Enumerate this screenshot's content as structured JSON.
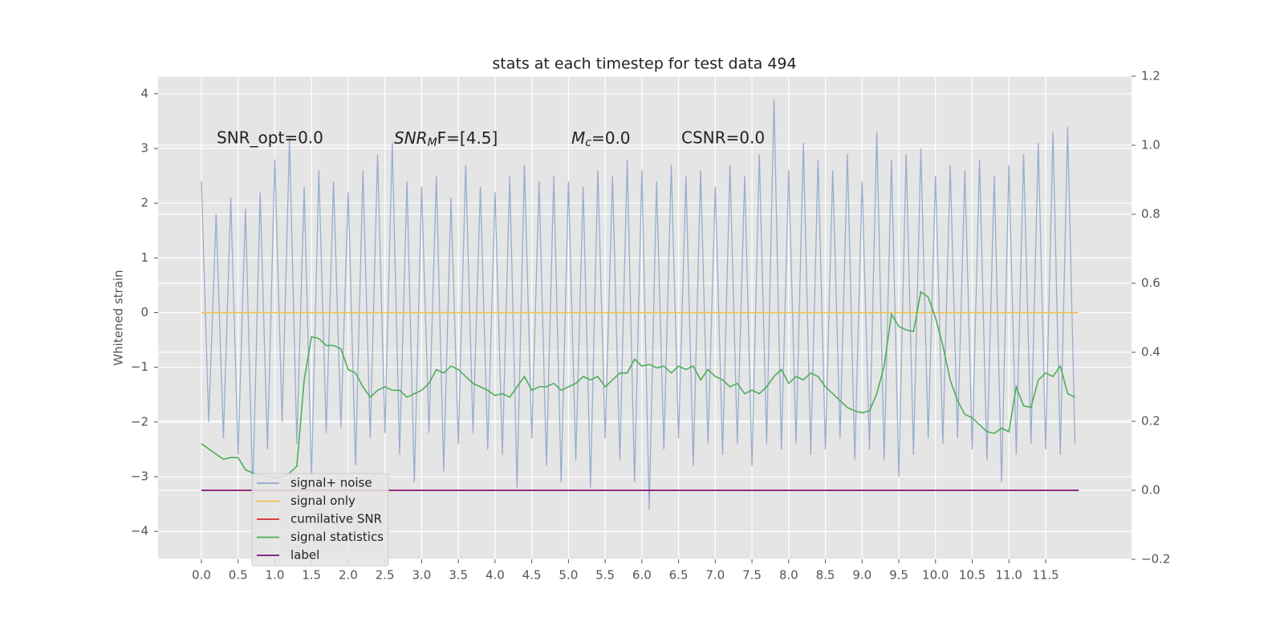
{
  "chart_data": {
    "type": "line",
    "title": "stats at each timestep for test data 494",
    "y_label": "Whitened strain",
    "annotations": [
      {
        "text": "SNR_opt=0.0"
      },
      {
        "base": "SNR",
        "sub": "M",
        "tail": "F=[4.5]"
      },
      {
        "base": "M",
        "sub": "c",
        "tail": "=0.0"
      },
      {
        "text": "CSNR=0.0"
      }
    ],
    "x": [
      0.0,
      0.1,
      0.2,
      0.3,
      0.4,
      0.5,
      0.6,
      0.7,
      0.8,
      0.9,
      1.0,
      1.1,
      1.2,
      1.3,
      1.4,
      1.5,
      1.6,
      1.7,
      1.8,
      1.9,
      2.0,
      2.1,
      2.2,
      2.3,
      2.4,
      2.5,
      2.6,
      2.7,
      2.8,
      2.9,
      3.0,
      3.1,
      3.2,
      3.3,
      3.4,
      3.5,
      3.6,
      3.7,
      3.8,
      3.9,
      4.0,
      4.1,
      4.2,
      4.3,
      4.4,
      4.5,
      4.6,
      4.7,
      4.8,
      4.9,
      5.0,
      5.1,
      5.2,
      5.3,
      5.4,
      5.5,
      5.6,
      5.7,
      5.8,
      5.9,
      6.0,
      6.1,
      6.2,
      6.3,
      6.4,
      6.5,
      6.6,
      6.7,
      6.8,
      6.9,
      7.0,
      7.1,
      7.2,
      7.3,
      7.4,
      7.5,
      7.6,
      7.7,
      7.8,
      7.9,
      8.0,
      8.1,
      8.2,
      8.3,
      8.4,
      8.5,
      8.6,
      8.7,
      8.8,
      8.9,
      9.0,
      9.1,
      9.2,
      9.3,
      9.4,
      9.5,
      9.6,
      9.7,
      9.8,
      9.9,
      10.0,
      10.1,
      10.2,
      10.3,
      10.4,
      10.5,
      10.6,
      10.7,
      10.8,
      10.9,
      11.0,
      11.1,
      11.2,
      11.3,
      11.4,
      11.5,
      11.6,
      11.7,
      11.8,
      11.9
    ],
    "series": [
      {
        "name": "signal+ noise",
        "color": "#95a9cb",
        "axis": "y",
        "values": [
          2.4,
          -2.0,
          1.8,
          -2.3,
          2.1,
          -2.6,
          1.9,
          -3.3,
          2.2,
          -2.5,
          2.8,
          -2.0,
          3.2,
          -2.4,
          2.3,
          -3.0,
          2.6,
          -2.2,
          2.4,
          -2.1,
          2.2,
          -2.8,
          2.6,
          -2.3,
          2.9,
          -2.2,
          3.1,
          -2.6,
          2.4,
          -3.1,
          2.3,
          -2.2,
          2.5,
          -2.9,
          2.1,
          -2.4,
          2.7,
          -2.2,
          2.3,
          -2.5,
          2.2,
          -2.6,
          2.5,
          -3.2,
          2.7,
          -2.3,
          2.4,
          -2.8,
          2.5,
          -3.1,
          2.4,
          -2.7,
          2.3,
          -3.2,
          2.6,
          -2.3,
          2.5,
          -2.7,
          2.8,
          -3.1,
          2.6,
          -3.6,
          2.4,
          -2.5,
          2.7,
          -2.3,
          2.5,
          -2.8,
          2.6,
          -2.4,
          2.3,
          -2.6,
          2.7,
          -2.4,
          2.5,
          -2.8,
          2.9,
          -2.4,
          3.9,
          -2.5,
          2.6,
          -2.4,
          3.1,
          -2.6,
          2.8,
          -2.5,
          2.6,
          -2.3,
          2.9,
          -2.7,
          2.4,
          -2.5,
          3.3,
          -2.7,
          2.8,
          -3.0,
          2.9,
          -2.6,
          3.0,
          -2.3,
          2.5,
          -2.4,
          2.7,
          -2.3,
          2.6,
          -2.5,
          2.8,
          -2.7,
          2.5,
          -3.1,
          2.7,
          -2.6,
          2.9,
          -2.4,
          3.1,
          -2.5,
          3.3,
          -2.6,
          3.4,
          -2.4
        ]
      },
      {
        "name": "signal only",
        "color": "#f2c14e",
        "axis": "y",
        "x": [
          0.0,
          11.95
        ],
        "values": [
          0,
          0
        ]
      },
      {
        "name": "cumilative SNR",
        "color": "#d62728",
        "axis": "y2",
        "x": [
          0.0,
          11.95
        ],
        "values": [
          0,
          0
        ]
      },
      {
        "name": "signal statistics",
        "color": "#4daf5a",
        "axis": "y2",
        "values": [
          0.135,
          0.12,
          0.105,
          0.09,
          0.095,
          0.095,
          0.06,
          0.05,
          0.045,
          0.04,
          0.035,
          0.04,
          0.05,
          0.07,
          0.32,
          0.445,
          0.44,
          0.42,
          0.42,
          0.41,
          0.35,
          0.34,
          0.3,
          0.27,
          0.29,
          0.3,
          0.29,
          0.29,
          0.27,
          0.28,
          0.29,
          0.31,
          0.35,
          0.34,
          0.36,
          0.35,
          0.33,
          0.31,
          0.3,
          0.29,
          0.275,
          0.28,
          0.27,
          0.3,
          0.33,
          0.29,
          0.3,
          0.3,
          0.31,
          0.29,
          0.3,
          0.31,
          0.33,
          0.32,
          0.33,
          0.3,
          0.32,
          0.34,
          0.34,
          0.38,
          0.36,
          0.365,
          0.355,
          0.36,
          0.34,
          0.36,
          0.35,
          0.36,
          0.32,
          0.35,
          0.33,
          0.32,
          0.3,
          0.31,
          0.28,
          0.29,
          0.28,
          0.3,
          0.33,
          0.35,
          0.31,
          0.33,
          0.32,
          0.34,
          0.33,
          0.3,
          0.28,
          0.26,
          0.24,
          0.23,
          0.225,
          0.23,
          0.28,
          0.36,
          0.51,
          0.475,
          0.465,
          0.46,
          0.575,
          0.56,
          0.5,
          0.42,
          0.32,
          0.26,
          0.22,
          0.21,
          0.19,
          0.17,
          0.165,
          0.18,
          0.17,
          0.3,
          0.245,
          0.24,
          0.32,
          0.34,
          0.33,
          0.36,
          0.28,
          0.27
        ]
      },
      {
        "name": "label",
        "color": "#7b0f7b",
        "axis": "y2",
        "x": [
          0.0,
          11.95
        ],
        "values": [
          0,
          0
        ]
      }
    ],
    "xlim": [
      -0.59,
      12.67
    ],
    "xticks": [
      {
        "value": 0,
        "label": "0.0"
      },
      0.5,
      {
        "value": 1,
        "label": "1.0"
      },
      1.5,
      {
        "value": 2,
        "label": "2.0"
      },
      2.5,
      {
        "value": 3,
        "label": "3.0"
      },
      3.5,
      {
        "value": 4,
        "label": "4.0"
      },
      4.5,
      {
        "value": 5,
        "label": "5.0"
      },
      5.5,
      {
        "value": 6,
        "label": "6.0"
      },
      6.5,
      {
        "value": 7,
        "label": "7.0"
      },
      7.5,
      {
        "value": 8,
        "label": "8.0"
      },
      8.5,
      {
        "value": 9,
        "label": "9.0"
      },
      9.5,
      {
        "value": 10,
        "label": "10.0"
      },
      10.5,
      {
        "value": 11,
        "label": "11.0"
      },
      11.5
    ],
    "ylim": [
      -4.51,
      4.32
    ],
    "yticks": [
      {
        "value": -4,
        "label": "−4"
      },
      {
        "value": -3,
        "label": "−3"
      },
      {
        "value": -2,
        "label": "−2"
      },
      {
        "value": -1,
        "label": "−1"
      },
      0,
      1,
      2,
      3,
      4
    ],
    "y2lim": [
      -0.2,
      1.2
    ],
    "y2ticks": [
      {
        "value": -0.2,
        "label": "−0.2"
      },
      {
        "value": 0,
        "label": "0.0"
      },
      0.2,
      0.4,
      0.6,
      0.8,
      {
        "value": 1,
        "label": "1.0"
      },
      1.2
    ],
    "grid": true,
    "legend": "lower left"
  }
}
